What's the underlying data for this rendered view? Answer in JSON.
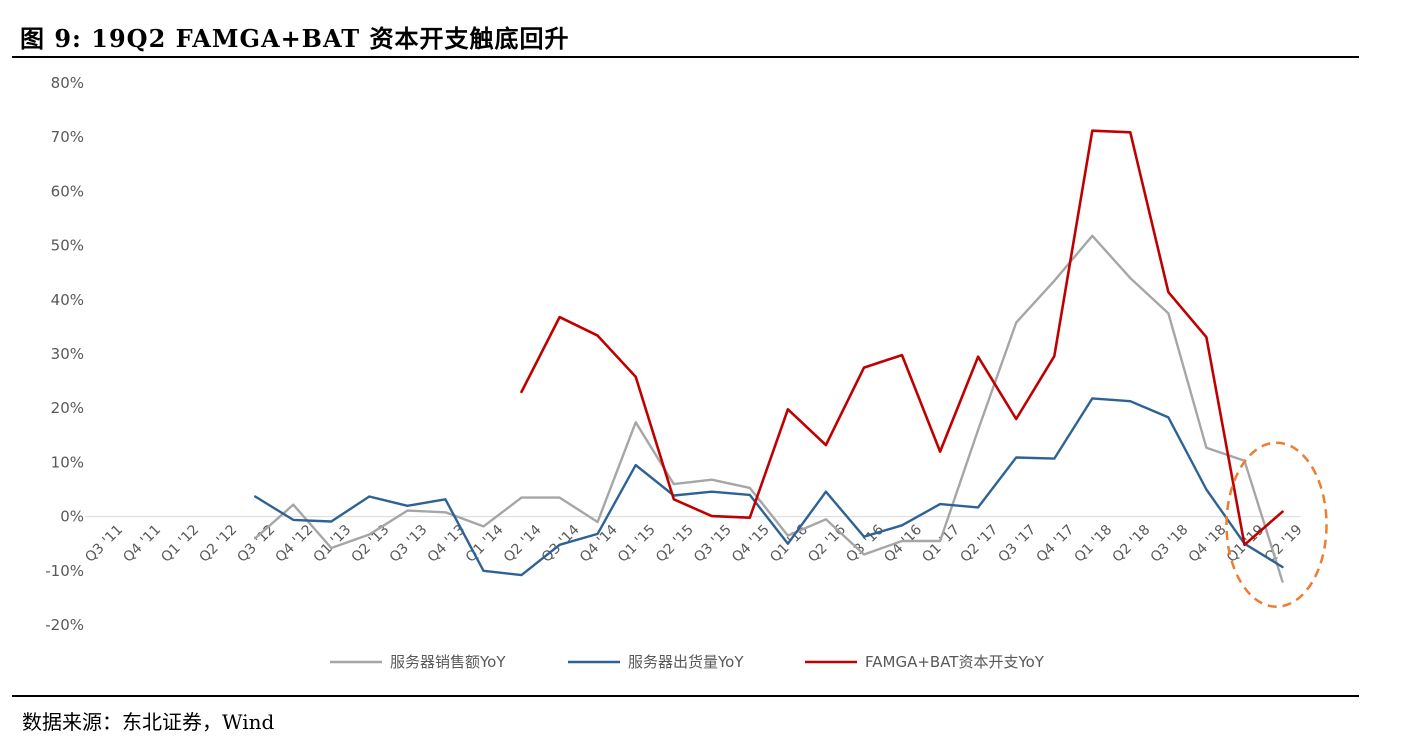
{
  "header": {
    "title": "图  9:  19Q2 FAMGA+BAT 资本开支触底回升"
  },
  "footer": {
    "source": "数据来源：东北证券，Wind"
  },
  "chart_data": {
    "type": "line",
    "title": "",
    "xlabel": "",
    "ylabel": "",
    "ylim": [
      -20,
      80
    ],
    "y_ticks": [
      "80%",
      "70%",
      "60%",
      "50%",
      "40%",
      "30%",
      "20%",
      "10%",
      "0%",
      "-10%",
      "-20%"
    ],
    "grid": false,
    "legend_position": "bottom",
    "categories": [
      "Q3 '11",
      "Q4 '11",
      "Q1 '12",
      "Q2 '12",
      "Q3 '12",
      "Q4 '12",
      "Q1 '13",
      "Q2 '13",
      "Q3 '13",
      "Q4 '13",
      "Q1 '14",
      "Q2 '14",
      "Q3 '14",
      "Q4 '14",
      "Q1 '15",
      "Q2 '15",
      "Q3 '15",
      "Q4 '15",
      "Q1 '16",
      "Q2 '16",
      "Q3 '16",
      "Q4 '16",
      "Q1 '17",
      "Q2 '17",
      "Q3 '17",
      "Q4 '17",
      "Q1 '18",
      "Q2 '18",
      "Q3 '18",
      "Q4 '18",
      "Q1 '19",
      "Q2 '19"
    ],
    "series": [
      {
        "name": "服务器销售额YoY",
        "color": "#a6a6a6",
        "values": [
          null,
          null,
          null,
          null,
          -4.0,
          2.2,
          -5.8,
          -3.3,
          1.1,
          0.8,
          -1.8,
          3.5,
          3.5,
          -1.0,
          17.4,
          6.0,
          6.8,
          5.3,
          -3.5,
          -0.5,
          -7.0,
          -4.5,
          -4.5,
          16.0,
          35.8,
          43.5,
          51.8,
          44.0,
          37.5,
          12.7,
          10.3,
          -12.0
        ]
      },
      {
        "name": "服务器出货量YoY",
        "color": "#2e6295",
        "values": [
          null,
          null,
          null,
          null,
          3.7,
          -0.6,
          -0.9,
          3.7,
          2.0,
          3.2,
          -10.0,
          -10.8,
          -5.2,
          -3.2,
          9.5,
          3.9,
          4.6,
          4.0,
          -5.0,
          4.6,
          -3.7,
          -1.6,
          2.3,
          1.7,
          10.9,
          10.7,
          21.8,
          21.3,
          18.3,
          5.0,
          -5.0,
          -9.3
        ]
      },
      {
        "name": "FAMGA+BAT资本开支YoY",
        "color": "#c00000",
        "values": [
          null,
          null,
          null,
          null,
          null,
          null,
          null,
          null,
          null,
          null,
          null,
          23.0,
          36.8,
          33.4,
          25.8,
          3.2,
          0.1,
          -0.2,
          19.8,
          13.2,
          27.5,
          29.8,
          12.0,
          29.5,
          18.0,
          29.6,
          71.2,
          70.9,
          41.4,
          33.1,
          -5.2,
          0.9
        ]
      }
    ],
    "annotations": [
      {
        "shape": "dashed-ellipse",
        "color": "#ed7d31",
        "around": [
          "Q1 '19",
          "Q2 '19"
        ]
      }
    ]
  }
}
